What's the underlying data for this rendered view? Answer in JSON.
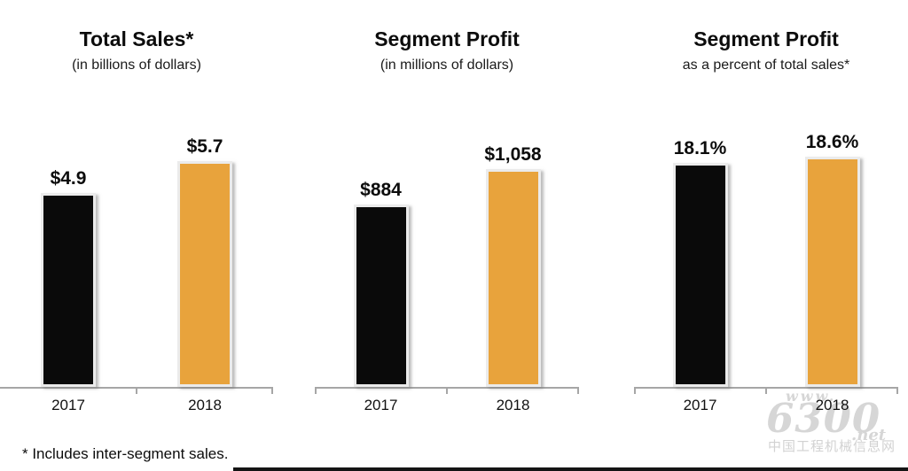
{
  "footnote": "* Includes inter-segment sales.",
  "watermark": {
    "www": "www.",
    "number": "6300",
    "net": ".net",
    "caption": "中国工程机械信息网"
  },
  "colors": {
    "bar_2017": "#0a0a0a",
    "bar_2018": "#e8a33c",
    "axis": "#a6a6a6"
  },
  "chart_data": [
    {
      "type": "bar",
      "title": "Total Sales*",
      "subtitle": "(in billions of dollars)",
      "categories": [
        "2017",
        "2018"
      ],
      "values": [
        4.9,
        5.7
      ],
      "value_labels": [
        "$4.9",
        "$5.7"
      ],
      "series_colors": [
        "#0a0a0a",
        "#e8a33c"
      ],
      "ylim": [
        0,
        5.7
      ],
      "grid": false,
      "legend": false
    },
    {
      "type": "bar",
      "title": "Segment Profit",
      "subtitle": "(in millions of dollars)",
      "categories": [
        "2017",
        "2018"
      ],
      "values": [
        884,
        1058
      ],
      "value_labels": [
        "$884",
        "$1,058"
      ],
      "series_colors": [
        "#0a0a0a",
        "#e8a33c"
      ],
      "ylim": [
        0,
        1058
      ],
      "grid": false,
      "legend": false
    },
    {
      "type": "bar",
      "title": "Segment Profit",
      "subtitle": "as a percent of total sales*",
      "categories": [
        "2017",
        "2018"
      ],
      "values": [
        18.1,
        18.6
      ],
      "value_labels": [
        "18.1%",
        "18.6%"
      ],
      "series_colors": [
        "#0a0a0a",
        "#e8a33c"
      ],
      "ylim": [
        0,
        18.6
      ],
      "grid": false,
      "legend": false
    }
  ]
}
